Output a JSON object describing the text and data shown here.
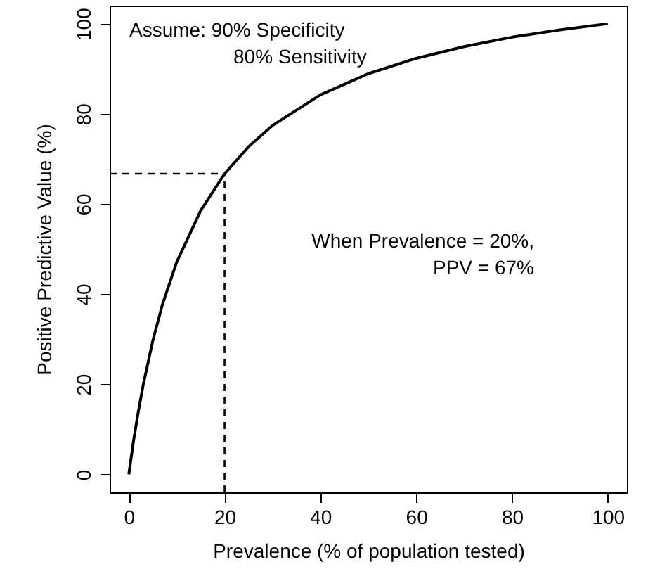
{
  "chart_data": {
    "type": "line",
    "xlabel": "Prevalence (% of population tested)",
    "ylabel": "Positive Predictive Value (%)",
    "x": [
      0,
      1,
      2,
      3,
      5,
      7,
      10,
      15,
      20,
      25,
      30,
      40,
      50,
      60,
      70,
      80,
      90,
      100
    ],
    "series": [
      {
        "color": "#000000",
        "values": [
          0,
          7.5,
          14,
          19.8,
          29.6,
          37.6,
          47.1,
          58.5,
          66.7,
          72.7,
          77.4,
          84.2,
          88.9,
          92.3,
          94.9,
          97,
          98.6,
          100
        ]
      }
    ],
    "xlim": [
      -4,
      104
    ],
    "ylim": [
      -4,
      104
    ],
    "xticks": [
      0,
      20,
      40,
      60,
      80,
      100
    ],
    "yticks": [
      0,
      20,
      40,
      60,
      80,
      100
    ],
    "ref_lines": [
      {
        "axis": "x",
        "value": 20,
        "line_style": "dashed"
      },
      {
        "axis": "y",
        "value": 66.7,
        "line_style": "dashed"
      }
    ],
    "annotations": [
      "Assume: 90% Specificity",
      "80% Sensitivity",
      "When Prevalence = 20%,",
      "PPV = 67%"
    ],
    "grid": false,
    "marker": "none",
    "line_style": "solid"
  }
}
